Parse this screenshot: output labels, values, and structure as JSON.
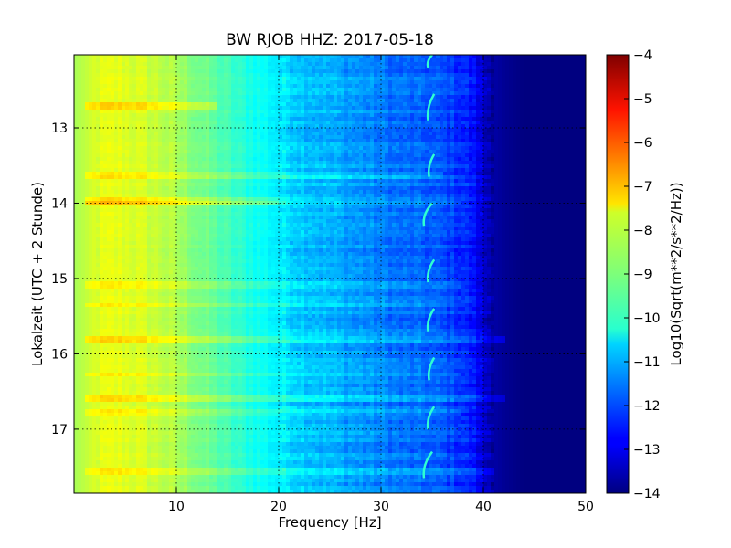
{
  "chart_data": {
    "type": "heatmap",
    "title": "BW RJOB HHZ: 2017-05-18",
    "xlabel": "Frequency [Hz]",
    "ylabel": "Lokalzeit (UTC + 2 Stunde)",
    "xlim": [
      0,
      50
    ],
    "ylim": [
      17.85,
      12.03
    ],
    "y_inverted": true,
    "x_ticks": [
      10,
      20,
      30,
      40,
      50
    ],
    "x_tick_labels": [
      "10",
      "20",
      "30",
      "40",
      "50"
    ],
    "y_ticks": [
      13,
      14,
      15,
      16,
      17
    ],
    "y_tick_labels": [
      "13",
      "14",
      "15",
      "16",
      "17"
    ],
    "grid": true,
    "colormap": "jet",
    "colorbar": {
      "label": "Log10(Sqrt(m**2/s**2/Hz))",
      "range": [
        -14,
        -4
      ],
      "ticks": [
        -4,
        -5,
        -6,
        -7,
        -8,
        -9,
        -10,
        -11,
        -12,
        -13,
        -14
      ],
      "tick_labels": [
        "−4",
        "−5",
        "−6",
        "−7",
        "−8",
        "−9",
        "−10",
        "−11",
        "−12",
        "−13",
        "−14"
      ]
    },
    "spectrum_profile": {
      "frequency_hz": [
        0,
        1,
        2,
        4,
        6,
        8,
        10,
        12,
        14,
        16,
        18,
        20,
        22,
        24,
        26,
        28,
        30,
        32,
        34,
        36,
        38,
        39,
        40,
        41,
        42,
        43,
        44,
        45,
        48,
        50
      ],
      "level": [
        -8.6,
        -8.4,
        -8.1,
        -8.0,
        -8.1,
        -8.3,
        -8.6,
        -9.0,
        -9.4,
        -9.8,
        -10.1,
        -10.4,
        -10.7,
        -10.9,
        -11.1,
        -11.3,
        -11.5,
        -11.7,
        -11.8,
        -12.0,
        -12.3,
        -12.6,
        -13.2,
        -13.6,
        -13.8,
        -13.9,
        -14.0,
        -14.0,
        -14.0,
        -14.0
      ]
    },
    "band_features": [
      {
        "time": 12.7,
        "f_max": 14,
        "delta": 0.7
      },
      {
        "time": 13.62,
        "f_max": 36,
        "delta": 0.5
      },
      {
        "time": 13.98,
        "f_max": 20,
        "delta": 0.5
      },
      {
        "time": 14.0,
        "f_max": 38,
        "delta": 0.5
      },
      {
        "time": 15.1,
        "f_max": 38,
        "delta": 0.4
      },
      {
        "time": 15.36,
        "f_max": 37,
        "delta": 0.4
      },
      {
        "time": 15.82,
        "f_max": 42,
        "delta": 0.7
      },
      {
        "time": 16.28,
        "f_max": 38,
        "delta": 0.4
      },
      {
        "time": 16.58,
        "f_max": 42,
        "delta": 0.6
      },
      {
        "time": 16.79,
        "f_max": 38,
        "delta": 0.4
      },
      {
        "time": 17.55,
        "f_max": 41,
        "delta": 0.4
      }
    ],
    "arc_features": [
      {
        "time_start": 12.03,
        "time_end": 12.2,
        "f_top": 35.0,
        "f_bottom": 34.6
      },
      {
        "time_start": 12.55,
        "time_end": 12.9,
        "f_top": 35.2,
        "f_bottom": 34.6
      },
      {
        "time_start": 13.35,
        "time_end": 13.65,
        "f_top": 35.2,
        "f_bottom": 34.7
      },
      {
        "time_start": 14.0,
        "time_end": 14.3,
        "f_top": 35.0,
        "f_bottom": 34.2
      },
      {
        "time_start": 14.75,
        "time_end": 15.05,
        "f_top": 35.2,
        "f_bottom": 34.6
      },
      {
        "time_start": 15.4,
        "time_end": 15.7,
        "f_top": 35.2,
        "f_bottom": 34.6
      },
      {
        "time_start": 16.05,
        "time_end": 16.35,
        "f_top": 35.2,
        "f_bottom": 34.7
      },
      {
        "time_start": 16.7,
        "time_end": 17.0,
        "f_top": 35.2,
        "f_bottom": 34.6
      },
      {
        "time_start": 17.3,
        "time_end": 17.65,
        "f_top": 35.0,
        "f_bottom": 34.2
      }
    ]
  }
}
